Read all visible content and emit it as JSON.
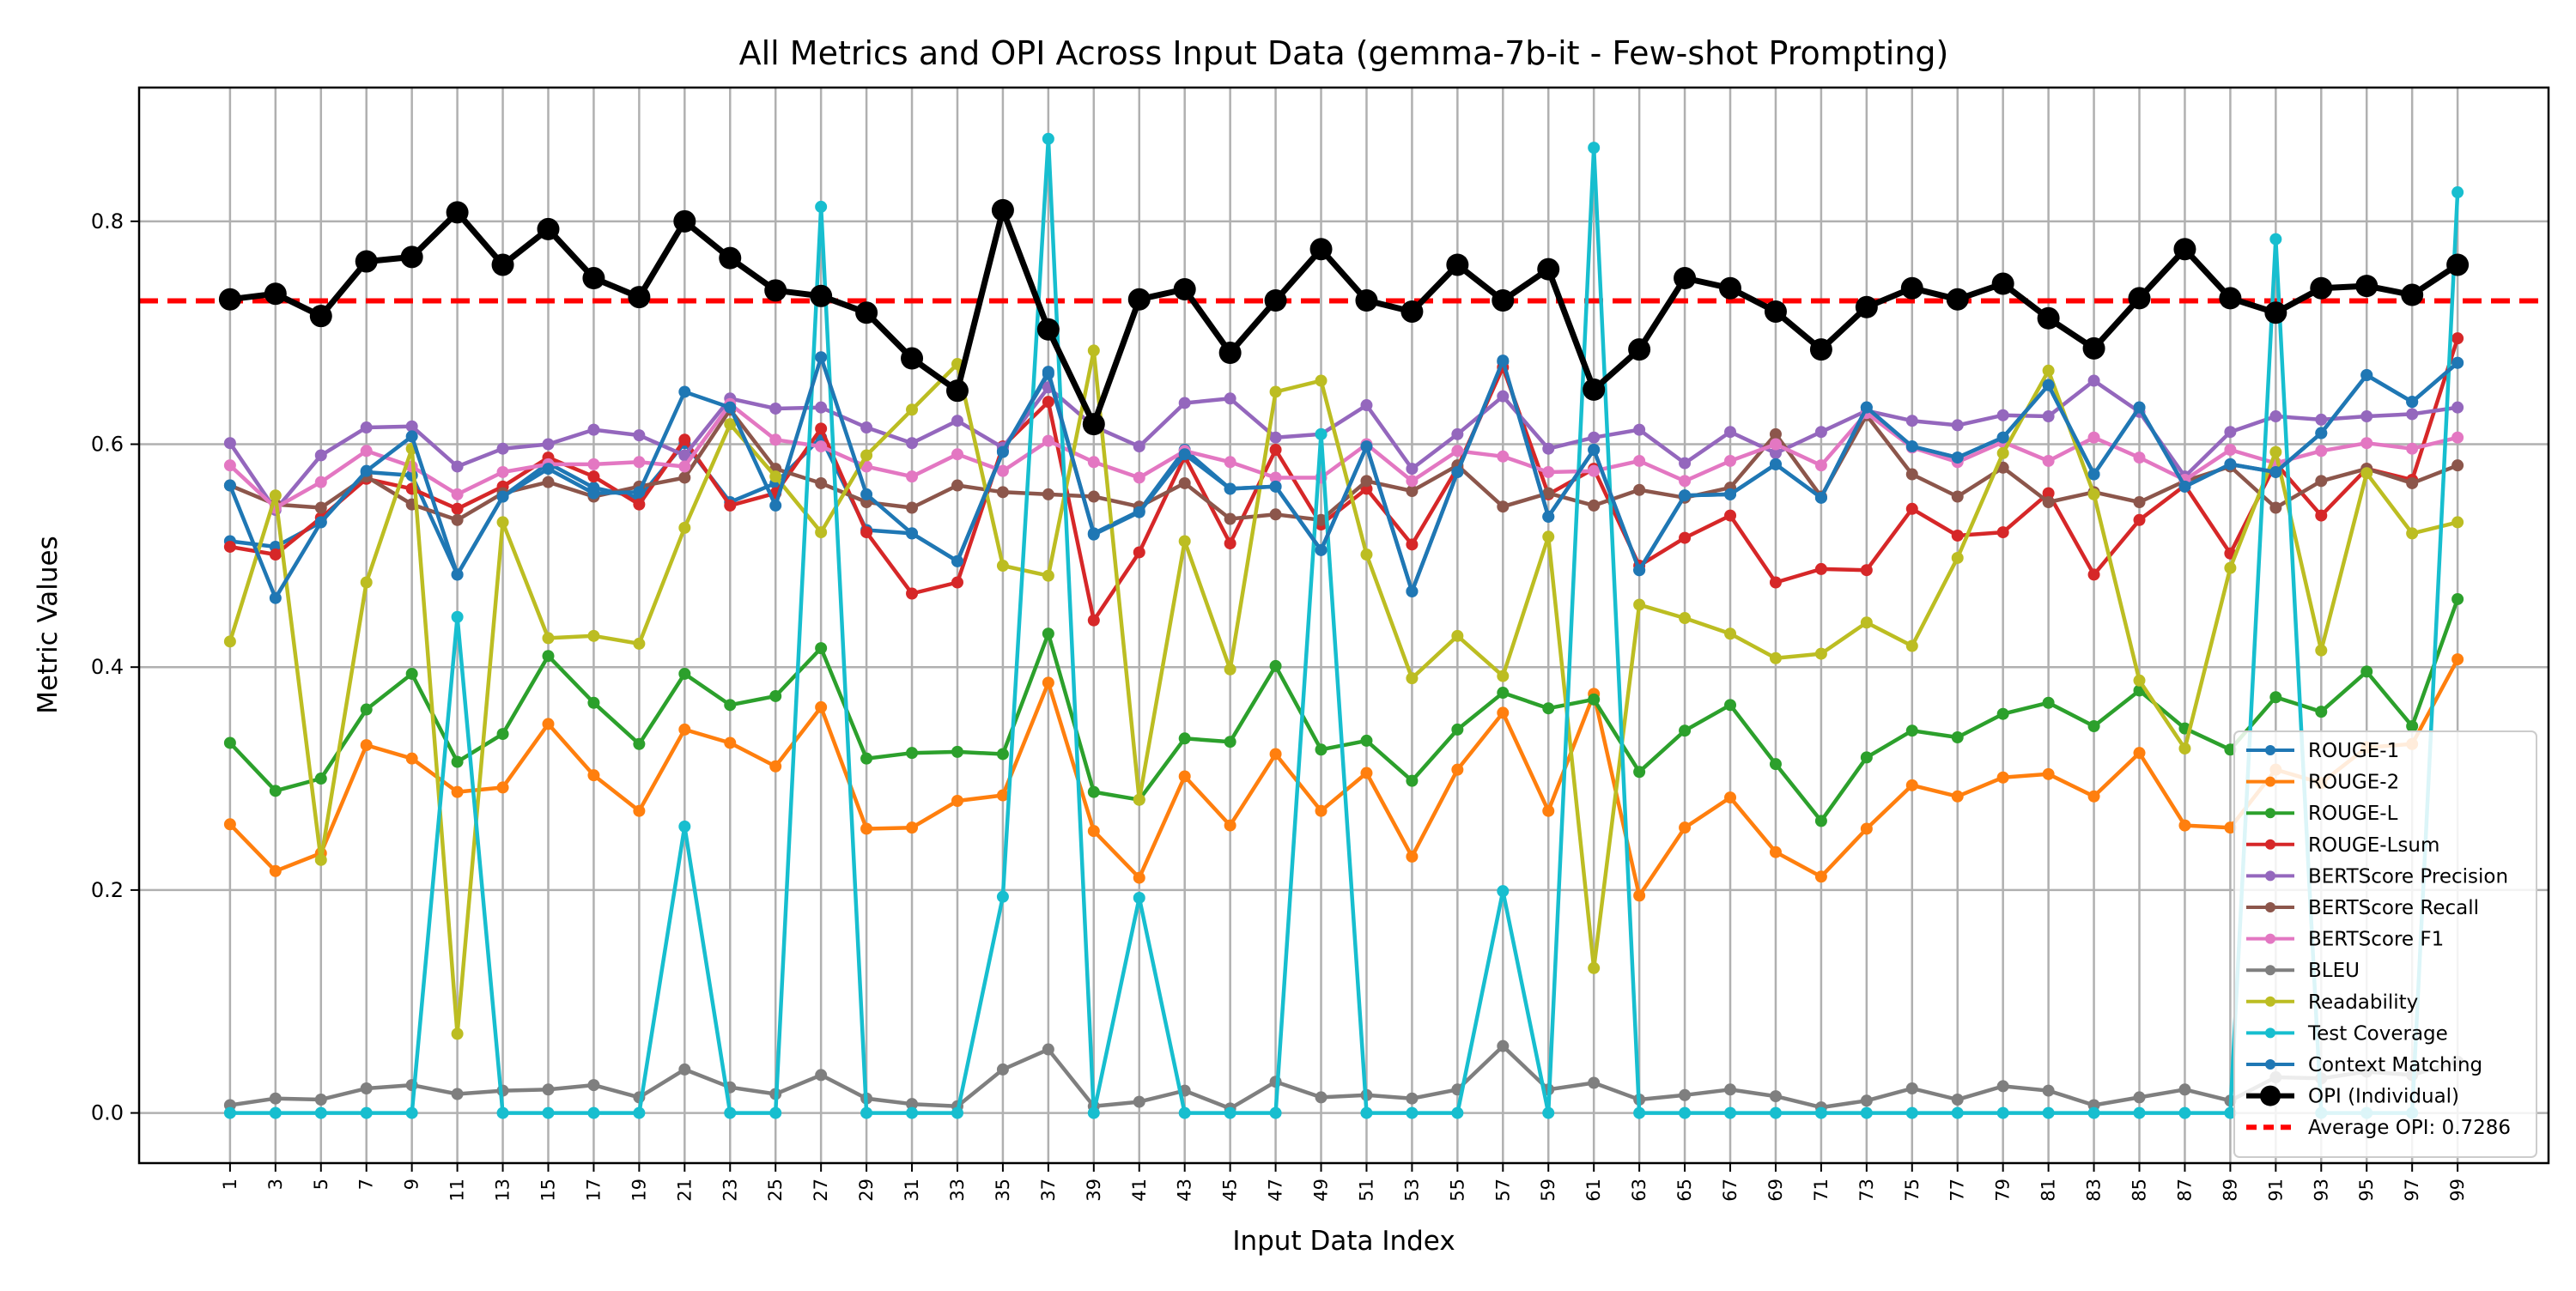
{
  "chart_data": {
    "type": "line",
    "title": "All Metrics and OPI Across Input Data (gemma-7b-it - Few-shot Prompting)",
    "xlabel": "Input Data Index",
    "ylabel": "Metric Values",
    "x": [
      1,
      3,
      5,
      7,
      9,
      11,
      13,
      15,
      17,
      19,
      21,
      23,
      25,
      27,
      29,
      31,
      33,
      35,
      37,
      39,
      41,
      43,
      45,
      47,
      49,
      51,
      53,
      55,
      57,
      59,
      61,
      63,
      65,
      67,
      69,
      71,
      73,
      75,
      77,
      79,
      81,
      83,
      85,
      87,
      89,
      91,
      93,
      95,
      97,
      99
    ],
    "x_tick_labels": [
      "1",
      "3",
      "5",
      "7",
      "9",
      "11",
      "13",
      "15",
      "17",
      "19",
      "21",
      "23",
      "25",
      "27",
      "29",
      "31",
      "33",
      "35",
      "37",
      "39",
      "41",
      "43",
      "45",
      "47",
      "49",
      "51",
      "53",
      "55",
      "57",
      "59",
      "61",
      "63",
      "65",
      "67",
      "69",
      "71",
      "73",
      "75",
      "77",
      "79",
      "81",
      "83",
      "85",
      "87",
      "89",
      "91",
      "93",
      "95",
      "97",
      "99"
    ],
    "y_ticks": [
      0.0,
      0.2,
      0.4,
      0.6,
      0.8
    ],
    "y_tick_labels": [
      "0.0",
      "0.2",
      "0.4",
      "0.6",
      "0.8"
    ],
    "xlim": [
      -3,
      103
    ],
    "ylim": [
      -0.045,
      0.92
    ],
    "grid": true,
    "legend_position": "lower-right",
    "series": [
      {
        "name": "ROUGE-1",
        "color": "#1f77b4",
        "values": [
          0.513,
          0.508,
          0.53,
          0.575,
          0.572,
          0.483,
          0.553,
          0.583,
          0.561,
          0.552,
          0.601,
          0.548,
          0.565,
          0.606,
          0.523,
          0.52,
          0.495,
          0.594,
          0.663,
          0.52,
          0.54,
          0.595,
          0.56,
          0.562,
          0.505,
          0.598,
          0.468,
          0.575,
          0.674,
          0.535,
          0.595,
          0.487,
          0.554,
          0.555,
          0.582,
          0.552,
          0.633,
          0.598,
          0.588,
          0.606,
          0.653,
          0.573,
          0.633,
          0.562,
          0.582,
          0.575,
          0.61,
          0.662,
          0.638,
          0.673
        ]
      },
      {
        "name": "ROUGE-2",
        "color": "#ff7f0e",
        "values": [
          0.259,
          0.217,
          0.233,
          0.33,
          0.318,
          0.288,
          0.292,
          0.349,
          0.303,
          0.271,
          0.344,
          0.332,
          0.311,
          0.364,
          0.255,
          0.256,
          0.28,
          0.285,
          0.386,
          0.253,
          0.211,
          0.302,
          0.258,
          0.322,
          0.271,
          0.305,
          0.23,
          0.308,
          0.359,
          0.271,
          0.376,
          0.195,
          0.256,
          0.283,
          0.234,
          0.212,
          0.255,
          0.294,
          0.284,
          0.301,
          0.304,
          0.284,
          0.323,
          0.258,
          0.256,
          0.308,
          0.296,
          0.328,
          0.331,
          0.407
        ]
      },
      {
        "name": "ROUGE-L",
        "color": "#2ca02c",
        "values": [
          0.332,
          0.289,
          0.3,
          0.362,
          0.394,
          0.315,
          0.34,
          0.41,
          0.368,
          0.331,
          0.394,
          0.366,
          0.374,
          0.417,
          0.318,
          0.323,
          0.324,
          0.322,
          0.43,
          0.288,
          0.281,
          0.336,
          0.333,
          0.401,
          0.326,
          0.334,
          0.298,
          0.344,
          0.377,
          0.363,
          0.371,
          0.306,
          0.343,
          0.366,
          0.313,
          0.262,
          0.319,
          0.343,
          0.337,
          0.358,
          0.368,
          0.347,
          0.379,
          0.345,
          0.326,
          0.373,
          0.36,
          0.396,
          0.347,
          0.461
        ]
      },
      {
        "name": "ROUGE-Lsum",
        "color": "#d62728",
        "values": [
          0.508,
          0.501,
          0.534,
          0.569,
          0.56,
          0.542,
          0.562,
          0.588,
          0.571,
          0.546,
          0.604,
          0.545,
          0.556,
          0.614,
          0.521,
          0.466,
          0.476,
          0.598,
          0.638,
          0.442,
          0.503,
          0.589,
          0.511,
          0.595,
          0.528,
          0.56,
          0.51,
          0.579,
          0.669,
          0.555,
          0.578,
          0.491,
          0.516,
          0.536,
          0.476,
          0.488,
          0.487,
          0.542,
          0.518,
          0.521,
          0.556,
          0.483,
          0.532,
          0.563,
          0.502,
          0.583,
          0.536,
          0.578,
          0.568,
          0.695
        ]
      },
      {
        "name": "BERTScore Precision",
        "color": "#9467bd",
        "values": [
          0.601,
          0.541,
          0.59,
          0.615,
          0.616,
          0.58,
          0.596,
          0.6,
          0.613,
          0.608,
          0.59,
          0.641,
          0.632,
          0.633,
          0.615,
          0.601,
          0.621,
          0.597,
          0.651,
          0.616,
          0.598,
          0.637,
          0.641,
          0.606,
          0.609,
          0.635,
          0.578,
          0.609,
          0.643,
          0.596,
          0.606,
          0.613,
          0.583,
          0.611,
          0.592,
          0.611,
          0.63,
          0.621,
          0.617,
          0.626,
          0.625,
          0.657,
          0.629,
          0.571,
          0.611,
          0.625,
          0.622,
          0.625,
          0.627,
          0.633
        ]
      },
      {
        "name": "BERTScore Recall",
        "color": "#8c564b",
        "values": [
          0.563,
          0.546,
          0.543,
          0.571,
          0.546,
          0.532,
          0.556,
          0.566,
          0.553,
          0.562,
          0.57,
          0.631,
          0.578,
          0.565,
          0.548,
          0.543,
          0.563,
          0.557,
          0.555,
          0.553,
          0.544,
          0.565,
          0.533,
          0.537,
          0.532,
          0.567,
          0.558,
          0.581,
          0.544,
          0.556,
          0.545,
          0.559,
          0.552,
          0.561,
          0.609,
          0.553,
          0.626,
          0.573,
          0.553,
          0.579,
          0.548,
          0.557,
          0.548,
          0.567,
          0.58,
          0.543,
          0.567,
          0.578,
          0.565,
          0.581
        ]
      },
      {
        "name": "BERTScore F1",
        "color": "#e377c2",
        "values": [
          0.581,
          0.543,
          0.566,
          0.594,
          0.58,
          0.555,
          0.575,
          0.582,
          0.582,
          0.584,
          0.58,
          0.636,
          0.604,
          0.598,
          0.58,
          0.571,
          0.591,
          0.576,
          0.603,
          0.584,
          0.57,
          0.594,
          0.584,
          0.57,
          0.57,
          0.6,
          0.567,
          0.594,
          0.589,
          0.575,
          0.576,
          0.585,
          0.567,
          0.585,
          0.6,
          0.581,
          0.628,
          0.597,
          0.584,
          0.602,
          0.585,
          0.606,
          0.588,
          0.568,
          0.595,
          0.583,
          0.594,
          0.601,
          0.596,
          0.606
        ]
      },
      {
        "name": "BLEU",
        "color": "#7f7f7f",
        "values": [
          0.007,
          0.013,
          0.012,
          0.022,
          0.025,
          0.017,
          0.02,
          0.021,
          0.025,
          0.014,
          0.039,
          0.023,
          0.017,
          0.034,
          0.013,
          0.008,
          0.006,
          0.039,
          0.057,
          0.006,
          0.01,
          0.02,
          0.004,
          0.028,
          0.014,
          0.016,
          0.013,
          0.021,
          0.06,
          0.021,
          0.027,
          0.012,
          0.016,
          0.021,
          0.015,
          0.005,
          0.011,
          0.022,
          0.012,
          0.024,
          0.02,
          0.007,
          0.014,
          0.021,
          0.011,
          0.032,
          0.031,
          0.037,
          0.034,
          0.046
        ]
      },
      {
        "name": "Readability",
        "color": "#bcbd22",
        "values": [
          0.423,
          0.554,
          0.227,
          0.476,
          0.596,
          0.071,
          0.53,
          0.426,
          0.428,
          0.421,
          0.525,
          0.618,
          0.571,
          0.521,
          0.59,
          0.631,
          0.672,
          0.491,
          0.482,
          0.684,
          0.281,
          0.513,
          0.398,
          0.647,
          0.657,
          0.501,
          0.39,
          0.428,
          0.392,
          0.517,
          0.13,
          0.456,
          0.444,
          0.43,
          0.408,
          0.412,
          0.44,
          0.419,
          0.498,
          0.592,
          0.666,
          0.555,
          0.388,
          0.327,
          0.489,
          0.593,
          0.415,
          0.574,
          0.52,
          0.53
        ]
      },
      {
        "name": "Test Coverage",
        "color": "#17becf",
        "values": [
          0,
          0,
          0,
          0,
          0,
          0.445,
          0,
          0,
          0,
          0,
          0.257,
          0,
          0,
          0.813,
          0,
          0,
          0,
          0.194,
          0.874,
          0,
          0.193,
          0,
          0,
          0,
          0.609,
          0,
          0,
          0,
          0.199,
          0,
          0.866,
          0,
          0,
          0,
          0,
          0,
          0,
          0,
          0,
          0,
          0,
          0,
          0,
          0,
          0,
          0.784,
          0,
          0,
          0,
          0.826
        ]
      },
      {
        "name": "Context Matching",
        "color": "#1f77b4",
        "values": [
          0.563,
          0.462,
          0.53,
          0.576,
          0.607,
          0.483,
          0.553,
          0.578,
          0.556,
          0.557,
          0.647,
          0.633,
          0.545,
          0.678,
          0.555,
          0.52,
          0.495,
          0.593,
          0.665,
          0.519,
          0.539,
          0.591,
          0.56,
          0.562,
          0.505,
          0.598,
          0.468,
          0.575,
          0.675,
          0.535,
          0.595,
          0.487,
          0.554,
          0.555,
          0.582,
          0.552,
          0.633,
          0.598,
          0.588,
          0.606,
          0.653,
          0.573,
          0.633,
          0.562,
          0.582,
          0.575,
          0.61,
          0.662,
          0.638,
          0.673
        ]
      },
      {
        "name": "OPI (Individual)",
        "color": "#000000",
        "values": [
          0.73,
          0.735,
          0.715,
          0.764,
          0.768,
          0.808,
          0.761,
          0.793,
          0.749,
          0.732,
          0.8,
          0.767,
          0.738,
          0.733,
          0.718,
          0.677,
          0.648,
          0.81,
          0.703,
          0.618,
          0.73,
          0.739,
          0.682,
          0.729,
          0.775,
          0.729,
          0.719,
          0.761,
          0.729,
          0.757,
          0.649,
          0.685,
          0.749,
          0.74,
          0.719,
          0.685,
          0.723,
          0.74,
          0.73,
          0.744,
          0.713,
          0.686,
          0.731,
          0.775,
          0.731,
          0.718,
          0.74,
          0.742,
          0.734,
          0.761
        ]
      }
    ],
    "reference_line": {
      "name": "Average OPI: 0.7286",
      "value": 0.7286,
      "color": "#ff0000",
      "style": "dashed"
    }
  }
}
